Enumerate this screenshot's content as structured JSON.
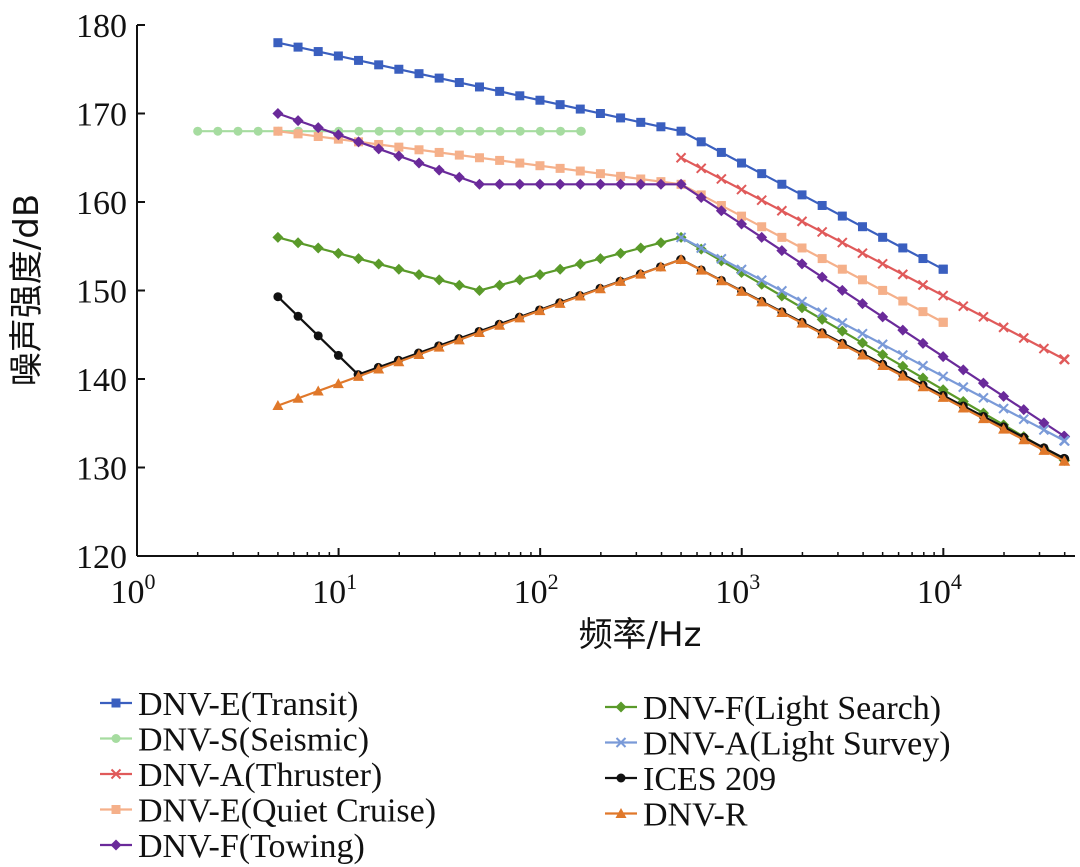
{
  "chart_data": {
    "type": "line",
    "xscale": "log",
    "xlabel": "频率/Hz",
    "ylabel": "噪声强度/dB",
    "xlim": [
      1,
      45000
    ],
    "ylim": [
      120,
      180
    ],
    "yticks": [
      120,
      130,
      140,
      150,
      160,
      170,
      180
    ],
    "xticks": [
      {
        "value": 1,
        "base": "10",
        "exp": "0"
      },
      {
        "value": 10,
        "base": "10",
        "exp": "1"
      },
      {
        "value": 100,
        "base": "10",
        "exp": "2"
      },
      {
        "value": 1000,
        "base": "10",
        "exp": "3"
      },
      {
        "value": 10000,
        "base": "10",
        "exp": "4"
      }
    ],
    "series": [
      {
        "name": "DNV-E(Transit)",
        "color": "#3a5fbf",
        "marker": "square",
        "points": [
          [
            5,
            178
          ],
          [
            500,
            168
          ],
          [
            10000,
            152.4
          ]
        ]
      },
      {
        "name": "DNV-S(Seismic)",
        "color": "#a6dca0",
        "marker": "circle",
        "points": [
          [
            2,
            168
          ],
          [
            160,
            168
          ]
        ]
      },
      {
        "name": "DNV-A(Thruster)",
        "color": "#e05a5a",
        "marker": "x",
        "points": [
          [
            500,
            165
          ],
          [
            40000,
            142.2
          ]
        ]
      },
      {
        "name": "DNV-E(Quiet Cruise)",
        "color": "#f5b08a",
        "marker": "square",
        "points": [
          [
            5,
            168
          ],
          [
            500,
            162
          ],
          [
            10000,
            146.4
          ]
        ]
      },
      {
        "name": "DNV-F(Towing)",
        "color": "#6a2a9a",
        "marker": "diamond",
        "points": [
          [
            5,
            170
          ],
          [
            50,
            162
          ],
          [
            500,
            162
          ],
          [
            40000,
            133.5
          ]
        ]
      },
      {
        "name": "DNV-F(Light Search)",
        "color": "#5a9a2a",
        "marker": "diamond",
        "points": [
          [
            5,
            156
          ],
          [
            50,
            150
          ],
          [
            500,
            156
          ],
          [
            40000,
            130.8
          ]
        ]
      },
      {
        "name": "DNV-A(Light Survey)",
        "color": "#7a9ad8",
        "marker": "x",
        "points": [
          [
            500,
            156
          ],
          [
            40000,
            133
          ]
        ]
      },
      {
        "name": "ICES 209",
        "color": "#111111",
        "marker": "circle",
        "points": [
          [
            5,
            149.3
          ],
          [
            12.5,
            140.5
          ],
          [
            500,
            153.5
          ],
          [
            40000,
            131
          ]
        ]
      },
      {
        "name": "DNV-R",
        "color": "#e0782a",
        "marker": "triangle",
        "points": [
          [
            5,
            137
          ],
          [
            500,
            153.5
          ],
          [
            40000,
            130.7
          ]
        ]
      }
    ]
  }
}
